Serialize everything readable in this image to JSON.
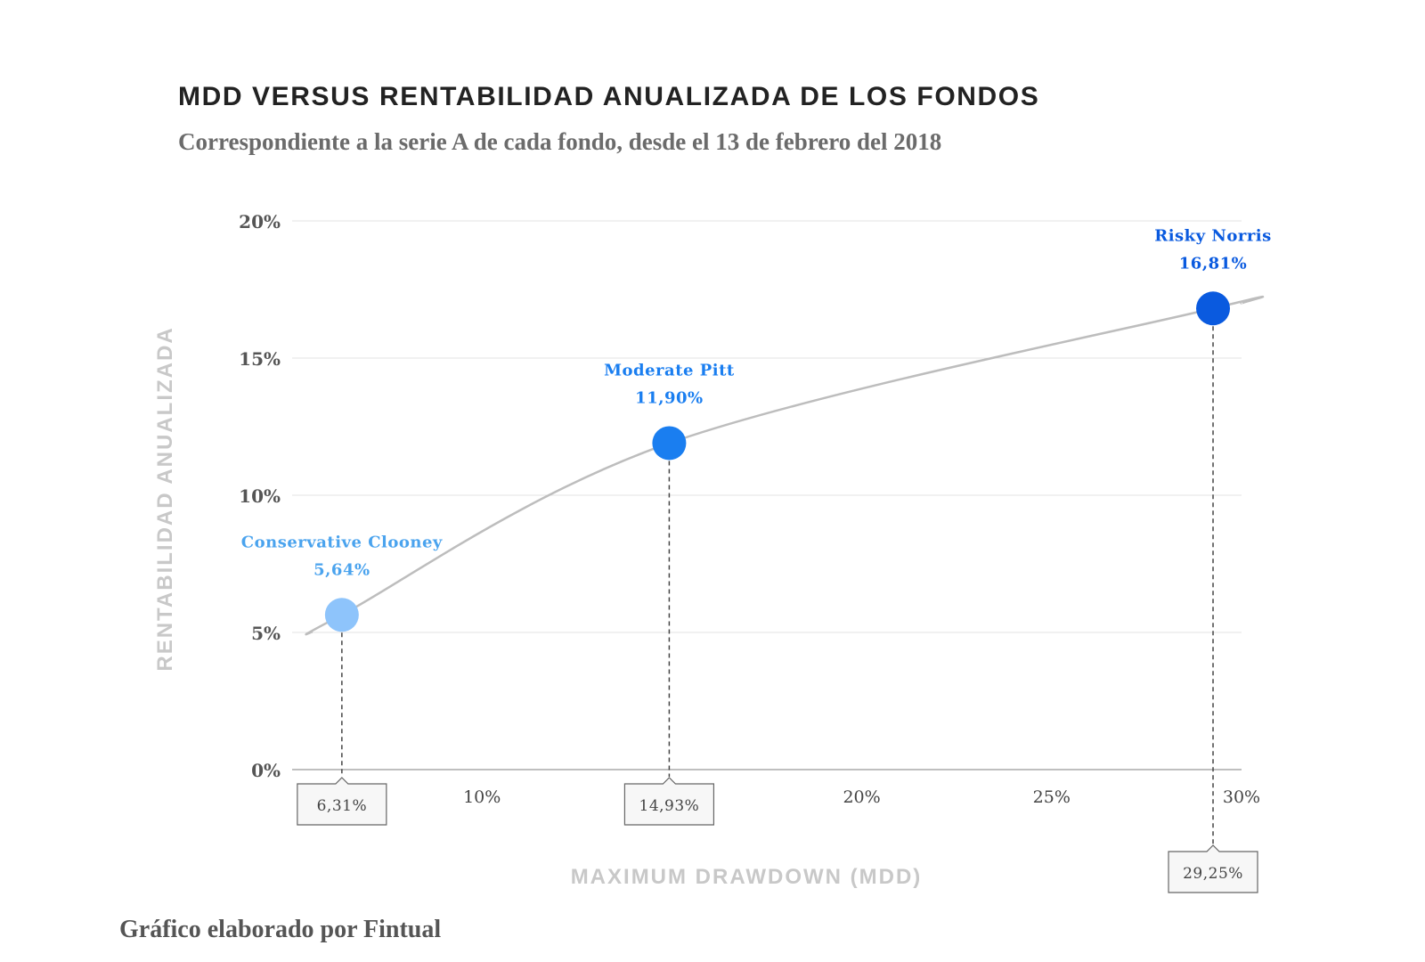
{
  "header": {
    "title": "MDD VERSUS RENTABILIDAD ANUALIZADA DE LOS FONDOS",
    "subtitle": "Correspondiente a la serie A de cada fondo, desde el 13 de febrero del 2018"
  },
  "footer": {
    "credit": "Gráfico elaborado por Fintual"
  },
  "chart_data": {
    "type": "scatter",
    "title": "MDD VERSUS RENTABILIDAD ANUALIZADA DE LOS FONDOS",
    "subtitle": "Correspondiente a la serie A de cada fondo, desde el 13 de febrero del 2018",
    "xlabel": "MAXIMUM DRAWDOWN (MDD)",
    "ylabel": "RENTABILIDAD ANUALIZADA",
    "xlim": [
      5,
      30
    ],
    "ylim": [
      0,
      20
    ],
    "x_ticks": [
      {
        "value": 10,
        "label": "10%"
      },
      {
        "value": 20,
        "label": "20%"
      },
      {
        "value": 25,
        "label": "25%"
      },
      {
        "value": 30,
        "label": "30%"
      }
    ],
    "y_ticks": [
      {
        "value": 0,
        "label": "0%"
      },
      {
        "value": 5,
        "label": "5%"
      },
      {
        "value": 10,
        "label": "10%"
      },
      {
        "value": 15,
        "label": "15%"
      },
      {
        "value": 20,
        "label": "20%"
      }
    ],
    "grid": true,
    "points": [
      {
        "name": "Conservative Clooney",
        "x": 6.31,
        "y": 5.64,
        "x_label": "6,31%",
        "y_label": "5,64%",
        "color": "#8ec4fb"
      },
      {
        "name": "Moderate Pitt",
        "x": 14.93,
        "y": 11.9,
        "x_label": "14,93%",
        "y_label": "11,90%",
        "color": "#1a7ef0"
      },
      {
        "name": "Risky Norris",
        "x": 29.25,
        "y": 16.81,
        "x_label": "29,25%",
        "y_label": "16,81%",
        "color": "#0a5adf"
      }
    ],
    "trend_line": {
      "color": "#bdbdbd",
      "points": [
        {
          "x": 5.5,
          "y": 5
        },
        {
          "x": 6.31,
          "y": 5.64
        },
        {
          "x": 14.93,
          "y": 11.9
        },
        {
          "x": 29.25,
          "y": 16.81
        },
        {
          "x": 30,
          "y": 17
        }
      ]
    },
    "colors": {
      "grid": "#e3e3e3",
      "axis": "#aaaaaa",
      "leader": "#444444",
      "box_fill": "#f7f7f7",
      "box_stroke": "#666666",
      "label_ink": {
        "Conservative Clooney": "#4aa3ee",
        "Moderate Pitt": "#1a7ef0",
        "Risky Norris": "#0a5adf"
      }
    }
  }
}
